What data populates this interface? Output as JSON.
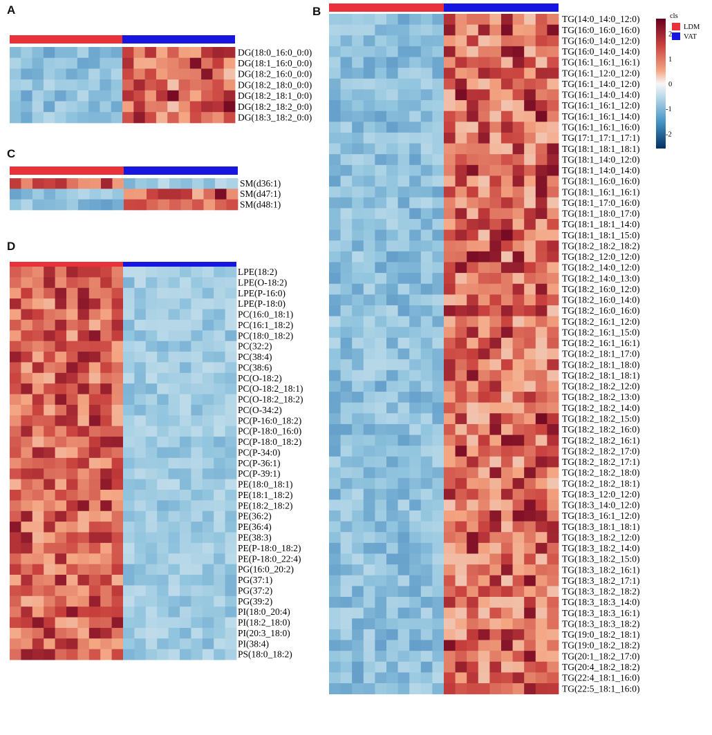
{
  "chart_data": [
    {
      "type": "heatmap",
      "panel": "A",
      "groups": [
        "LDM",
        "VAT"
      ],
      "samples_per_group": [
        10,
        10
      ],
      "rows": [
        "DG(18:0_16:0_0:0)",
        "DG(18:1_16:0_0:0)",
        "DG(18:2_16:0_0:0)",
        "DG(18:2_18:0_0:0)",
        "DG(18:2_18:1_0:0)",
        "DG(18:2_18:2_0:0)",
        "DG(18:3_18:2_0:0)"
      ],
      "pattern": [
        "vat_high",
        "vat_high",
        "vat_high",
        "vat_high",
        "vat_high",
        "vat_high",
        "vat_high"
      ]
    },
    {
      "type": "heatmap",
      "panel": "B",
      "groups": [
        "LDM",
        "VAT"
      ],
      "samples_per_group": [
        10,
        10
      ],
      "rows": [
        "TG(14:0_14:0_12:0)",
        "TG(16:0_16:0_16:0)",
        "TG(16:0_14:0_12:0)",
        "TG(16:0_14:0_14:0)",
        "TG(16:1_16:1_16:1)",
        "TG(16:1_12:0_12:0)",
        "TG(16:1_14:0_12:0)",
        "TG(16:1_14:0_14:0)",
        "TG(16:1_16:1_12:0)",
        "TG(16:1_16:1_14:0)",
        "TG(16:1_16:1_16:0)",
        "TG(17:1_17:1_17:1)",
        "TG(18:1_18:1_18:1)",
        "TG(18:1_14:0_12:0)",
        "TG(18:1_14:0_14:0)",
        "TG(18:1_16:0_16:0)",
        "TG(18:1_16:1_16:1)",
        "TG(18:1_17:0_16:0)",
        "TG(18:1_18:0_17:0)",
        "TG(18:1_18:1_14:0)",
        "TG(18:1_18:1_15:0)",
        "TG(18:2_18:2_18:2)",
        "TG(18:2_12:0_12:0)",
        "TG(18:2_14:0_12:0)",
        "TG(18:2_14:0_13:0)",
        "TG(18:2_16:0_12:0)",
        "TG(18:2_16:0_14:0)",
        "TG(18:2_16:0_16:0)",
        "TG(18:2_16:1_12:0)",
        "TG(18:2_16:1_15:0)",
        "TG(18:2_16:1_16:1)",
        "TG(18:2_18:1_17:0)",
        "TG(18:2_18:1_18:0)",
        "TG(18:2_18:1_18:1)",
        "TG(18:2_18:2_12:0)",
        "TG(18:2_18:2_13:0)",
        "TG(18:2_18:2_14:0)",
        "TG(18:2_18:2_15:0)",
        "TG(18:2_18:2_16:0)",
        "TG(18:2_18:2_16:1)",
        "TG(18:2_18:2_17:0)",
        "TG(18:2_18:2_17:1)",
        "TG(18:2_18:2_18:0)",
        "TG(18:2_18:2_18:1)",
        "TG(18:3_12:0_12:0)",
        "TG(18:3_14:0_12:0)",
        "TG(18:3_16:1_12:0)",
        "TG(18:3_18:1_18:1)",
        "TG(18:3_18:2_12:0)",
        "TG(18:3_18:2_14:0)",
        "TG(18:3_18:2_15:0)",
        "TG(18:3_18:2_16:1)",
        "TG(18:3_18:2_17:1)",
        "TG(18:3_18:2_18:2)",
        "TG(18:3_18:3_14:0)",
        "TG(18:3_18:3_16:1)",
        "TG(18:3_18:3_18:2)",
        "TG(19:0_18:2_18:1)",
        "TG(19:0_18:2_18:2)",
        "TG(20:1_18:2_17:0)",
        "TG(20:4_18:2_18:2)",
        "TG(22:4_18:1_16:0)",
        "TG(22:5_18:1_16:0)"
      ],
      "pattern": "vat_high"
    },
    {
      "type": "heatmap",
      "panel": "C",
      "groups": [
        "LDM",
        "VAT"
      ],
      "samples_per_group": [
        10,
        10
      ],
      "rows": [
        "SM(d36:1)",
        "SM(d47:1)",
        "SM(d48:1)"
      ],
      "pattern": [
        "ldm_high",
        "vat_high",
        "vat_high"
      ]
    },
    {
      "type": "heatmap",
      "panel": "D",
      "groups": [
        "LDM",
        "VAT"
      ],
      "samples_per_group": [
        10,
        10
      ],
      "rows": [
        "LPE(18:2)",
        "LPE(O-18:2)",
        "LPE(P-16:0)",
        "LPE(P-18:0)",
        "PC(16:0_18:1)",
        "PC(16:1_18:2)",
        "PC(18:0_18:2)",
        "PC(32:2)",
        "PC(38:4)",
        "PC(38:6)",
        "PC(O-18:2)",
        "PC(O-18:2_18:1)",
        "PC(O-18:2_18:2)",
        "PC(O-34:2)",
        "PC(P-16:0_18:2)",
        "PC(P-18:0_16:0)",
        "PC(P-18:0_18:2)",
        "PC(P-34:0)",
        "PC(P-36:1)",
        "PC(P-39:1)",
        "PE(18:0_18:1)",
        "PE(18:1_18:2)",
        "PE(18:2_18:2)",
        "PE(36:2)",
        "PE(36:4)",
        "PE(38:3)",
        "PE(P-18:0_18:2)",
        "PE(P-18:0_22:4)",
        "PG(16:0_20:2)",
        "PG(37:1)",
        "PG(37:2)",
        "PG(39:2)",
        "PI(18:0_20:4)",
        "PI(18:2_18:0)",
        "PI(20:3_18:0)",
        "PI(38:4)",
        "PS(18:0_18:2)"
      ],
      "pattern": "ldm_high"
    }
  ],
  "panels": {
    "A": "A",
    "B": "B",
    "C": "C",
    "D": "D"
  },
  "legend": {
    "title": "cls",
    "groups": [
      {
        "label": "LDM",
        "color": "#e8313a"
      },
      {
        "label": "VAT",
        "color": "#1616e0"
      }
    ],
    "scale_ticks": [
      "2",
      "1",
      "0",
      "-1",
      "-2"
    ],
    "scale_min": -2.6,
    "scale_max": 2.6
  },
  "colors": {
    "ldm": "#e8313a",
    "vat": "#1616e0",
    "high": "#67001f",
    "mid": "#f7f7f7",
    "low": "#053061"
  }
}
